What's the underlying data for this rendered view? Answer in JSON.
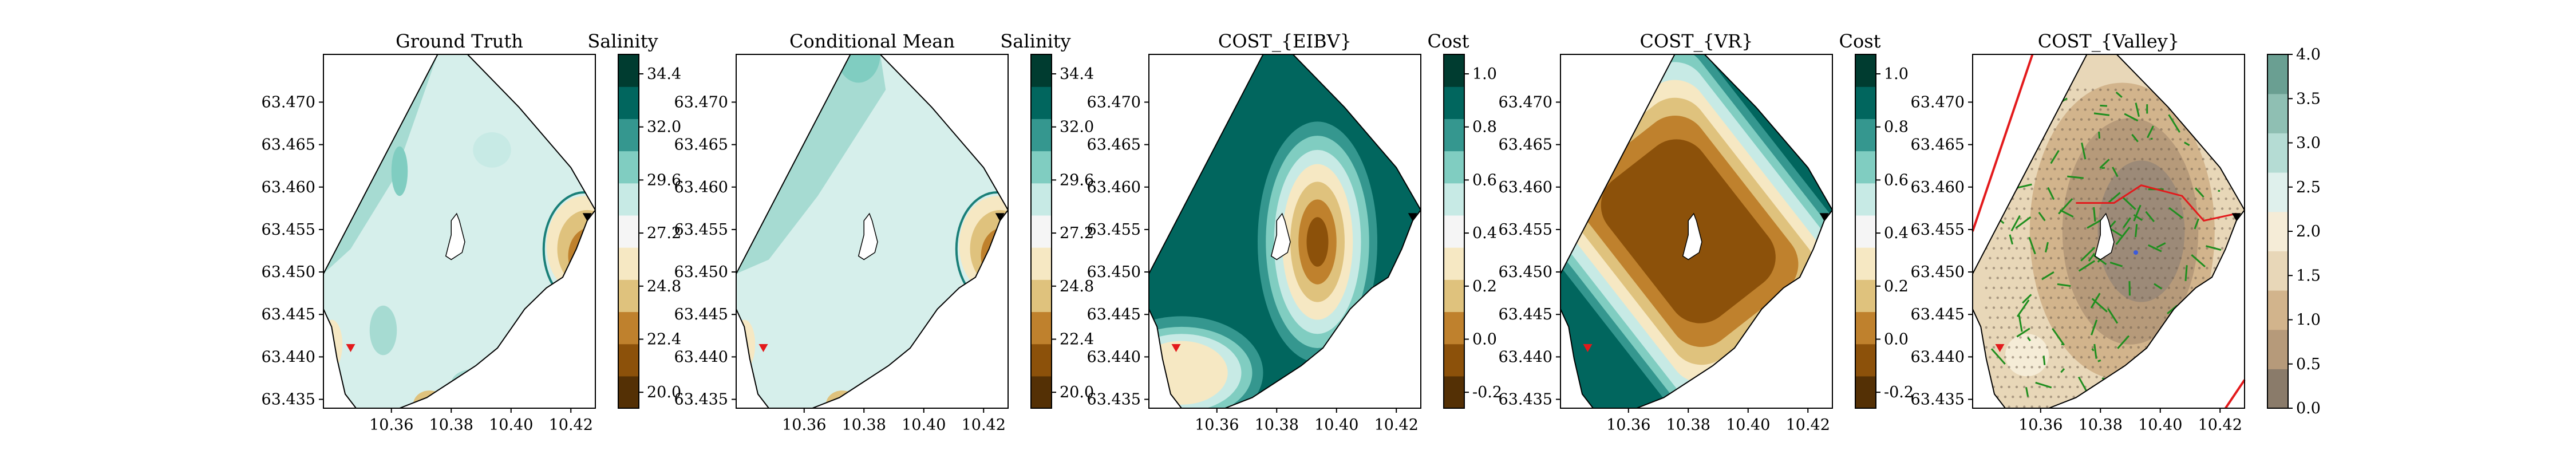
{
  "figure": {
    "panels": [
      {
        "title": "Ground Truth",
        "colorbar_label": "Salinity",
        "cb_ticks": [
          "20.0",
          "22.4",
          "24.8",
          "27.2",
          "29.6",
          "32.0",
          "34.4"
        ],
        "kind": "salinity_truth"
      },
      {
        "title": "Conditional Mean",
        "colorbar_label": "Salinity",
        "cb_ticks": [
          "20.0",
          "22.4",
          "24.8",
          "27.2",
          "29.6",
          "32.0",
          "34.4"
        ],
        "kind": "salinity_mean"
      },
      {
        "title": "COST_{EIBV}",
        "colorbar_label": "Cost",
        "cb_ticks": [
          "-0.2",
          "0.0",
          "0.2",
          "0.4",
          "0.6",
          "0.8",
          "1.0"
        ],
        "kind": "eibv"
      },
      {
        "title": "COST_{VR}",
        "colorbar_label": "Cost",
        "cb_ticks": [
          "-0.2",
          "0.0",
          "0.2",
          "0.4",
          "0.6",
          "0.8",
          "1.0"
        ],
        "kind": "vr"
      },
      {
        "title": "COST_{Valley}",
        "colorbar_label": "",
        "cb_ticks": [
          "0.0",
          "0.5",
          "1.0",
          "1.5",
          "2.0",
          "2.5",
          "3.0",
          "3.5",
          "4.0"
        ],
        "kind": "valley"
      }
    ],
    "x_ticks": [
      "10.36",
      "10.38",
      "10.40",
      "10.42"
    ],
    "y_ticks": [
      "63.435",
      "63.440",
      "63.445",
      "63.450",
      "63.455",
      "63.460",
      "63.465",
      "63.470"
    ],
    "colors": {
      "brbg": [
        "#543005",
        "#8c510a",
        "#bf812d",
        "#dfc27d",
        "#f6e8c3",
        "#f5f5f5",
        "#c7eae5",
        "#80cdc1",
        "#35978f",
        "#01665e",
        "#003c30"
      ],
      "valley": [
        "#8a7b6a",
        "#b69a7a",
        "#d2b48c",
        "#e8d7b8",
        "#f5ecd7",
        "#dff0ec",
        "#b5dcd4",
        "#8fbfb3",
        "#6a9f92"
      ],
      "start_marker": "#e31a1c",
      "end_marker": "#000000",
      "path": "#e31a1c",
      "tree": "#1f8f1f"
    }
  },
  "chart_data": [
    {
      "type": "heatmap",
      "title": "Ground Truth",
      "colorbar_label": "Salinity",
      "xlim": [
        10.345,
        10.435
      ],
      "ylim": [
        63.4335,
        63.4745
      ],
      "colorbar_range": [
        20.0,
        34.4
      ]
    },
    {
      "type": "heatmap",
      "title": "Conditional Mean",
      "colorbar_label": "Salinity",
      "xlim": [
        10.345,
        10.435
      ],
      "ylim": [
        63.4335,
        63.4745
      ],
      "colorbar_range": [
        20.0,
        34.4
      ]
    },
    {
      "type": "heatmap",
      "title": "COST_{EIBV}",
      "colorbar_label": "Cost",
      "xlim": [
        10.345,
        10.435
      ],
      "ylim": [
        63.4335,
        63.4745
      ],
      "colorbar_range": [
        -0.2,
        1.0
      ]
    },
    {
      "type": "heatmap",
      "title": "COST_{VR}",
      "colorbar_label": "Cost",
      "xlim": [
        10.345,
        10.435
      ],
      "ylim": [
        63.4335,
        63.4745
      ],
      "colorbar_range": [
        -0.2,
        1.0
      ]
    },
    {
      "type": "heatmap",
      "title": "COST_{Valley}",
      "colorbar_label": "",
      "xlim": [
        10.345,
        10.435
      ],
      "ylim": [
        63.4335,
        63.4745
      ],
      "colorbar_range": [
        0.0,
        4.0
      ]
    }
  ]
}
